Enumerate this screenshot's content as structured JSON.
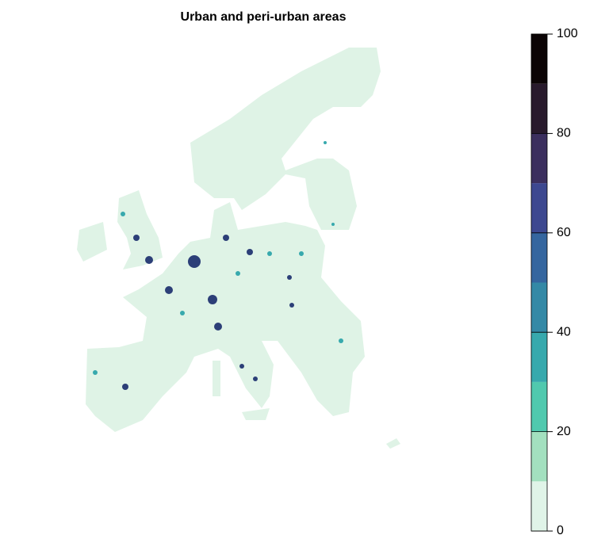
{
  "title": "Urban and peri-urban areas",
  "legend": {
    "lim": [
      0,
      100
    ],
    "ticks": [
      0,
      20,
      40,
      60,
      80,
      100
    ],
    "breaks": [
      0,
      10,
      20,
      30,
      40,
      50,
      60,
      70,
      80,
      90,
      100
    ],
    "colors": [
      "#e0f4e8",
      "#a3e0bf",
      "#50c9ae",
      "#37a9ad",
      "#3489a6",
      "#35669f",
      "#3d4890",
      "#3b2f5e",
      "#281a2c",
      "#0b0405"
    ]
  }
}
